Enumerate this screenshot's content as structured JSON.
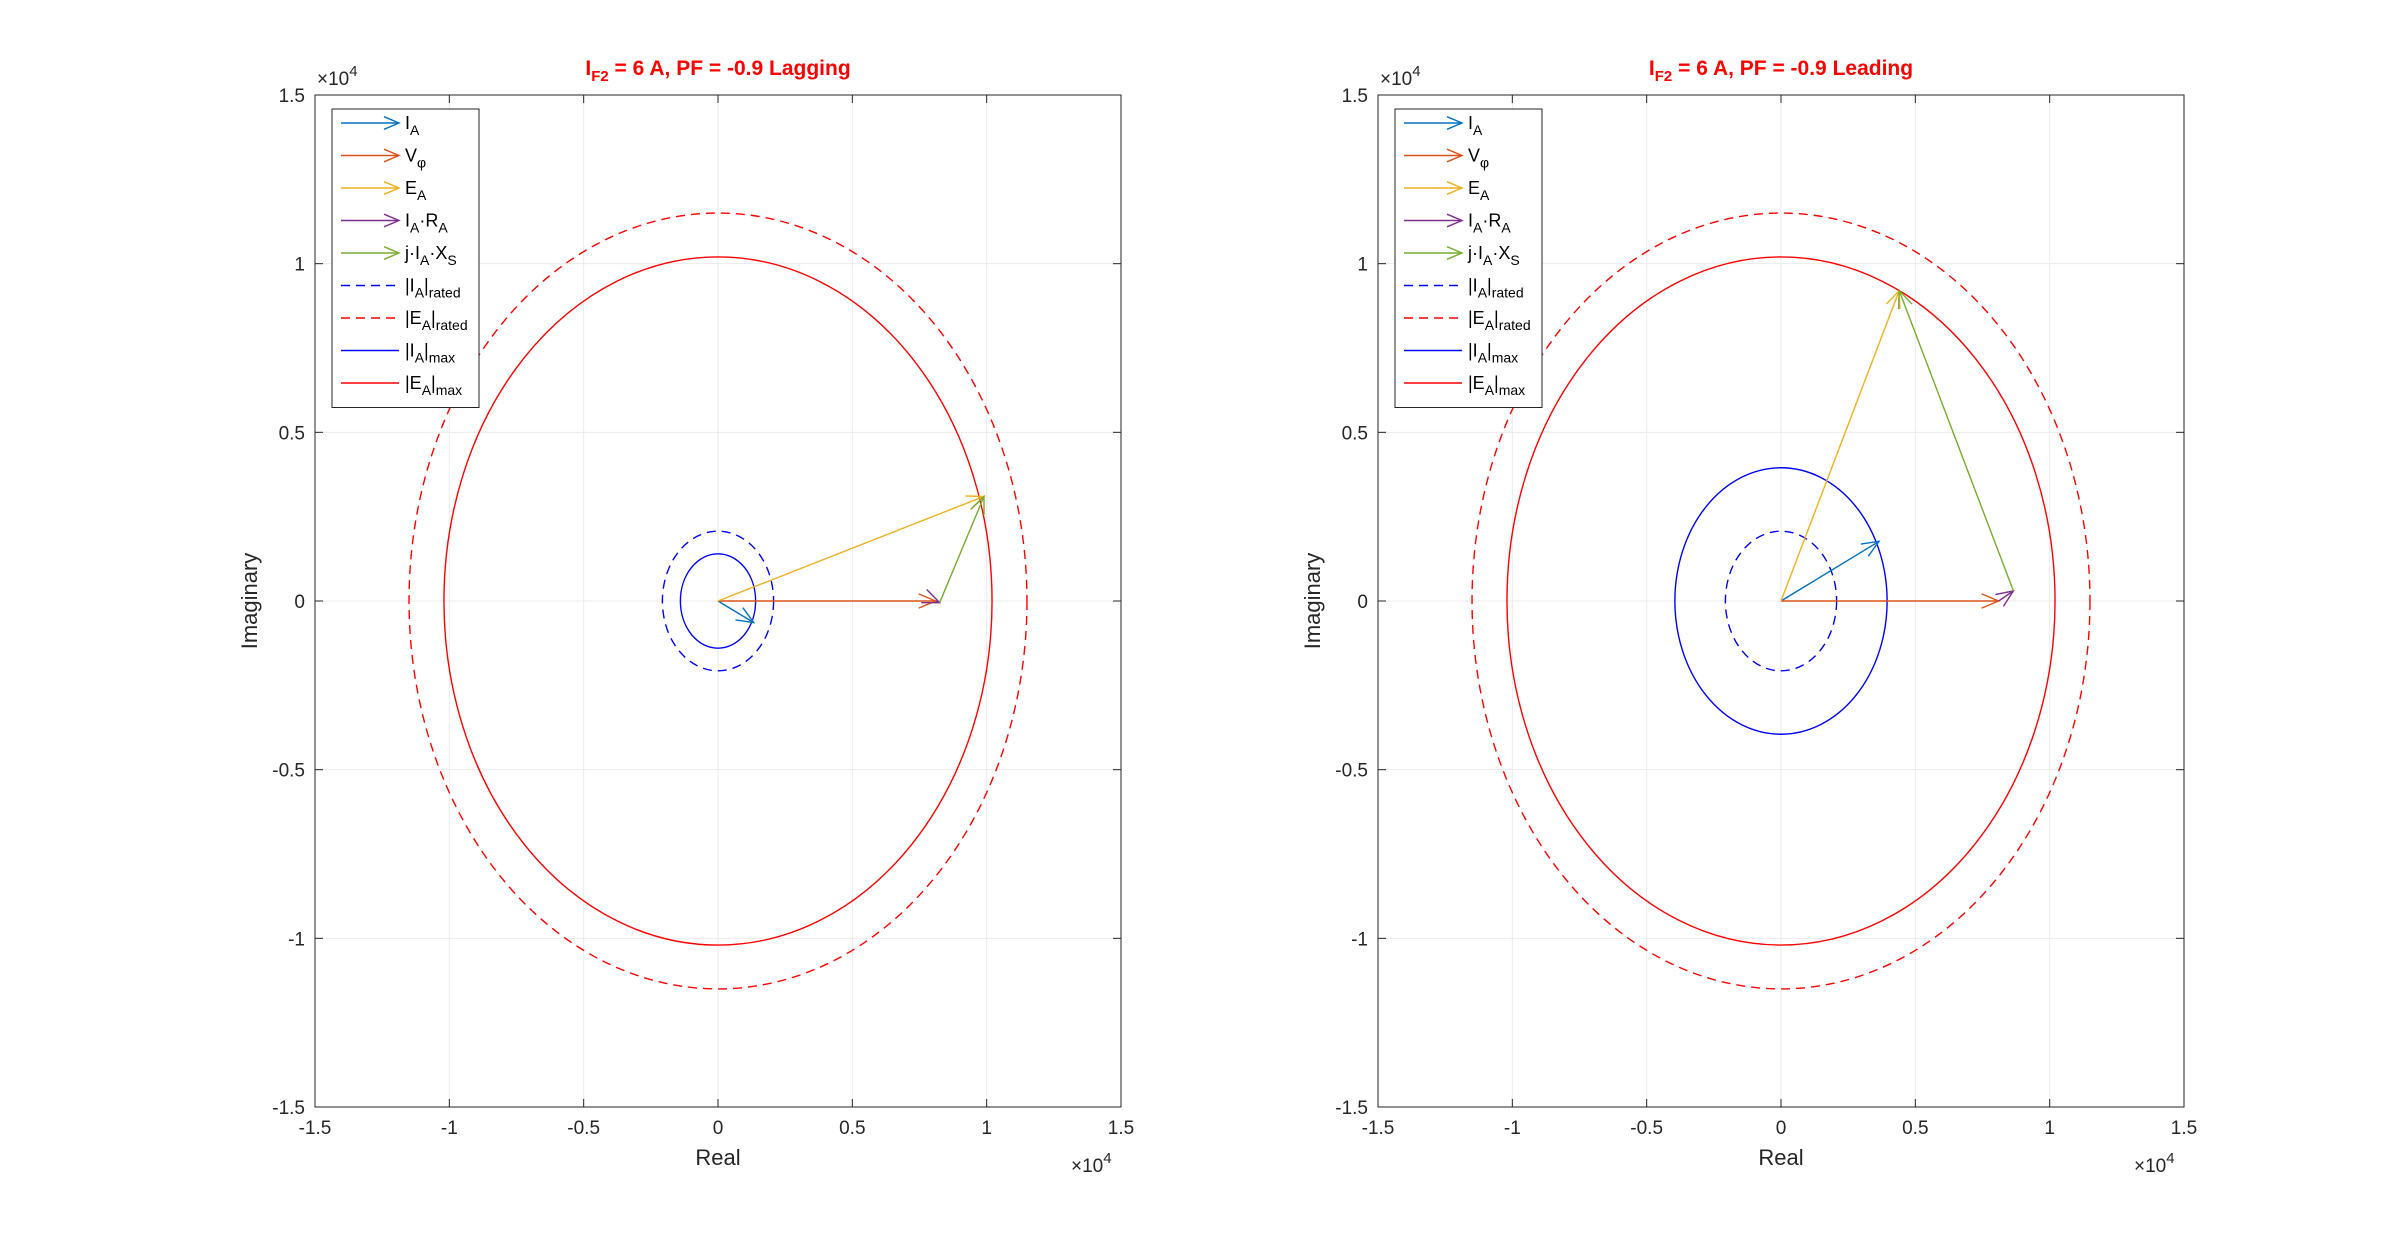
{
  "chart_data": [
    {
      "type": "line",
      "title": {
        "main": "I",
        "sub": "F2",
        "rest": " = 6 A, PF = -0.9 Lagging"
      },
      "xlabel": "Real",
      "ylabel": "Imaginary",
      "xlim": [
        -15000,
        15000
      ],
      "ylim": [
        -15000,
        15000
      ],
      "xticks": [
        -15000,
        -10000,
        -5000,
        0,
        5000,
        10000,
        15000
      ],
      "xtick_labels": [
        "-1.5",
        "-1",
        "-0.5",
        "0",
        "0.5",
        "1",
        "1.5"
      ],
      "yticks": [
        -15000,
        -10000,
        -5000,
        0,
        5000,
        10000,
        15000
      ],
      "ytick_labels": [
        "-1.5",
        "-1",
        "-0.5",
        "0",
        "0.5",
        "1",
        "1.5"
      ],
      "exponent_label": {
        "base": "×10",
        "exp": "4"
      },
      "grid": true,
      "legend_position": "top-left",
      "colors": {
        "IA": "#0072bd",
        "Vphi": "#d95319",
        "EA": "#edb120",
        "IARA": "#7e2f8e",
        "jIAXS": "#77ac30",
        "blue": "#0000ff",
        "red": "#ff0000",
        "title": "#ff0000"
      },
      "legend": [
        {
          "kind": "arrow",
          "series": "IA",
          "parts": [
            [
              "I",
              ""
            ],
            [
              "A",
              "sub"
            ]
          ]
        },
        {
          "kind": "arrow",
          "series": "Vphi",
          "parts": [
            [
              "V",
              ""
            ],
            [
              "φ",
              "sub"
            ]
          ]
        },
        {
          "kind": "arrow",
          "series": "EA",
          "parts": [
            [
              "E",
              ""
            ],
            [
              "A",
              "sub"
            ]
          ]
        },
        {
          "kind": "arrow",
          "series": "IARA",
          "parts": [
            [
              "I",
              ""
            ],
            [
              "A",
              "sub"
            ],
            [
              "·R",
              ""
            ],
            [
              "A",
              "sub"
            ]
          ]
        },
        {
          "kind": "arrow",
          "series": "jIAXS",
          "parts": [
            [
              "j·I",
              ""
            ],
            [
              "A",
              "sub"
            ],
            [
              "·X",
              ""
            ],
            [
              "S",
              "sub"
            ]
          ]
        },
        {
          "kind": "dashed",
          "series": "blue",
          "parts": [
            [
              "|I",
              ""
            ],
            [
              "A",
              "sub"
            ],
            [
              "|",
              ""
            ],
            [
              "rated",
              "sub"
            ]
          ]
        },
        {
          "kind": "dashed",
          "series": "red",
          "parts": [
            [
              "|E",
              ""
            ],
            [
              "A",
              "sub"
            ],
            [
              "|",
              ""
            ],
            [
              "rated",
              "sub"
            ]
          ]
        },
        {
          "kind": "solid",
          "series": "blue",
          "parts": [
            [
              "|I",
              ""
            ],
            [
              "A",
              "sub"
            ],
            [
              "|",
              ""
            ],
            [
              "max",
              "sub"
            ]
          ]
        },
        {
          "kind": "solid",
          "series": "red",
          "parts": [
            [
              "|E",
              ""
            ],
            [
              "A",
              "sub"
            ],
            [
              "|",
              ""
            ],
            [
              "max",
              "sub"
            ]
          ]
        }
      ],
      "circles": [
        {
          "name": "IA-rated",
          "radius": 2070,
          "series": "blue",
          "dashed": true
        },
        {
          "name": "EA-rated",
          "radius": 11500,
          "series": "red",
          "dashed": true
        },
        {
          "name": "IA-max",
          "radius": 1400,
          "series": "blue",
          "dashed": false
        },
        {
          "name": "EA-max",
          "radius": 10200,
          "series": "red",
          "dashed": false
        }
      ],
      "phasors": [
        {
          "name": "IA",
          "series": "IA",
          "from": [
            0,
            0
          ],
          "to": [
            1330,
            -640
          ]
        },
        {
          "name": "Vphi",
          "series": "Vphi",
          "from": [
            0,
            0
          ],
          "to": [
            8100,
            0
          ]
        },
        {
          "name": "EA",
          "series": "EA",
          "from": [
            0,
            0
          ],
          "to": [
            9900,
            3100
          ]
        },
        {
          "name": "IARA",
          "series": "IARA",
          "from": [
            8100,
            0
          ],
          "to": [
            8250,
            -50
          ]
        },
        {
          "name": "jIAXS",
          "series": "jIAXS",
          "from": [
            8250,
            -50
          ],
          "to": [
            9900,
            3100
          ]
        }
      ]
    },
    {
      "type": "line",
      "title": {
        "main": "I",
        "sub": "F2",
        "rest": " = 6 A, PF = -0.9 Leading"
      },
      "xlabel": "Real",
      "ylabel": "Imaginary",
      "xlim": [
        -15000,
        15000
      ],
      "ylim": [
        -15000,
        15000
      ],
      "xticks": [
        -15000,
        -10000,
        -5000,
        0,
        5000,
        10000,
        15000
      ],
      "xtick_labels": [
        "-1.5",
        "-1",
        "-0.5",
        "0",
        "0.5",
        "1",
        "1.5"
      ],
      "yticks": [
        -15000,
        -10000,
        -5000,
        0,
        5000,
        10000,
        15000
      ],
      "ytick_labels": [
        "-1.5",
        "-1",
        "-0.5",
        "0",
        "0.5",
        "1",
        "1.5"
      ],
      "exponent_label": {
        "base": "×10",
        "exp": "4"
      },
      "grid": true,
      "legend_position": "top-left",
      "colors": {
        "IA": "#0072bd",
        "Vphi": "#d95319",
        "EA": "#edb120",
        "IARA": "#7e2f8e",
        "jIAXS": "#77ac30",
        "blue": "#0000ff",
        "red": "#ff0000",
        "title": "#ff0000"
      },
      "legend": [
        {
          "kind": "arrow",
          "series": "IA",
          "parts": [
            [
              "I",
              ""
            ],
            [
              "A",
              "sub"
            ]
          ]
        },
        {
          "kind": "arrow",
          "series": "Vphi",
          "parts": [
            [
              "V",
              ""
            ],
            [
              "φ",
              "sub"
            ]
          ]
        },
        {
          "kind": "arrow",
          "series": "EA",
          "parts": [
            [
              "E",
              ""
            ],
            [
              "A",
              "sub"
            ]
          ]
        },
        {
          "kind": "arrow",
          "series": "IARA",
          "parts": [
            [
              "I",
              ""
            ],
            [
              "A",
              "sub"
            ],
            [
              "·R",
              ""
            ],
            [
              "A",
              "sub"
            ]
          ]
        },
        {
          "kind": "arrow",
          "series": "jIAXS",
          "parts": [
            [
              "j·I",
              ""
            ],
            [
              "A",
              "sub"
            ],
            [
              "·X",
              ""
            ],
            [
              "S",
              "sub"
            ]
          ]
        },
        {
          "kind": "dashed",
          "series": "blue",
          "parts": [
            [
              "|I",
              ""
            ],
            [
              "A",
              "sub"
            ],
            [
              "|",
              ""
            ],
            [
              "rated",
              "sub"
            ]
          ]
        },
        {
          "kind": "dashed",
          "series": "red",
          "parts": [
            [
              "|E",
              ""
            ],
            [
              "A",
              "sub"
            ],
            [
              "|",
              ""
            ],
            [
              "rated",
              "sub"
            ]
          ]
        },
        {
          "kind": "solid",
          "series": "blue",
          "parts": [
            [
              "|I",
              ""
            ],
            [
              "A",
              "sub"
            ],
            [
              "|",
              ""
            ],
            [
              "max",
              "sub"
            ]
          ]
        },
        {
          "kind": "solid",
          "series": "red",
          "parts": [
            [
              "|E",
              ""
            ],
            [
              "A",
              "sub"
            ],
            [
              "|",
              ""
            ],
            [
              "max",
              "sub"
            ]
          ]
        }
      ],
      "circles": [
        {
          "name": "IA-rated",
          "radius": 2070,
          "series": "blue",
          "dashed": true
        },
        {
          "name": "EA-rated",
          "radius": 11500,
          "series": "red",
          "dashed": true
        },
        {
          "name": "IA-max",
          "radius": 3950,
          "series": "blue",
          "dashed": false
        },
        {
          "name": "EA-max",
          "radius": 10200,
          "series": "red",
          "dashed": false
        }
      ],
      "phasors": [
        {
          "name": "IA",
          "series": "IA",
          "from": [
            0,
            0
          ],
          "to": [
            3650,
            1770
          ]
        },
        {
          "name": "Vphi",
          "series": "Vphi",
          "from": [
            0,
            0
          ],
          "to": [
            8100,
            0
          ]
        },
        {
          "name": "EA",
          "series": "EA",
          "from": [
            0,
            0
          ],
          "to": [
            4400,
            9200
          ]
        },
        {
          "name": "IARA",
          "series": "IARA",
          "from": [
            8100,
            0
          ],
          "to": [
            8650,
            300
          ]
        },
        {
          "name": "jIAXS",
          "series": "jIAXS",
          "from": [
            8650,
            300
          ],
          "to": [
            4400,
            9200
          ]
        }
      ]
    }
  ]
}
